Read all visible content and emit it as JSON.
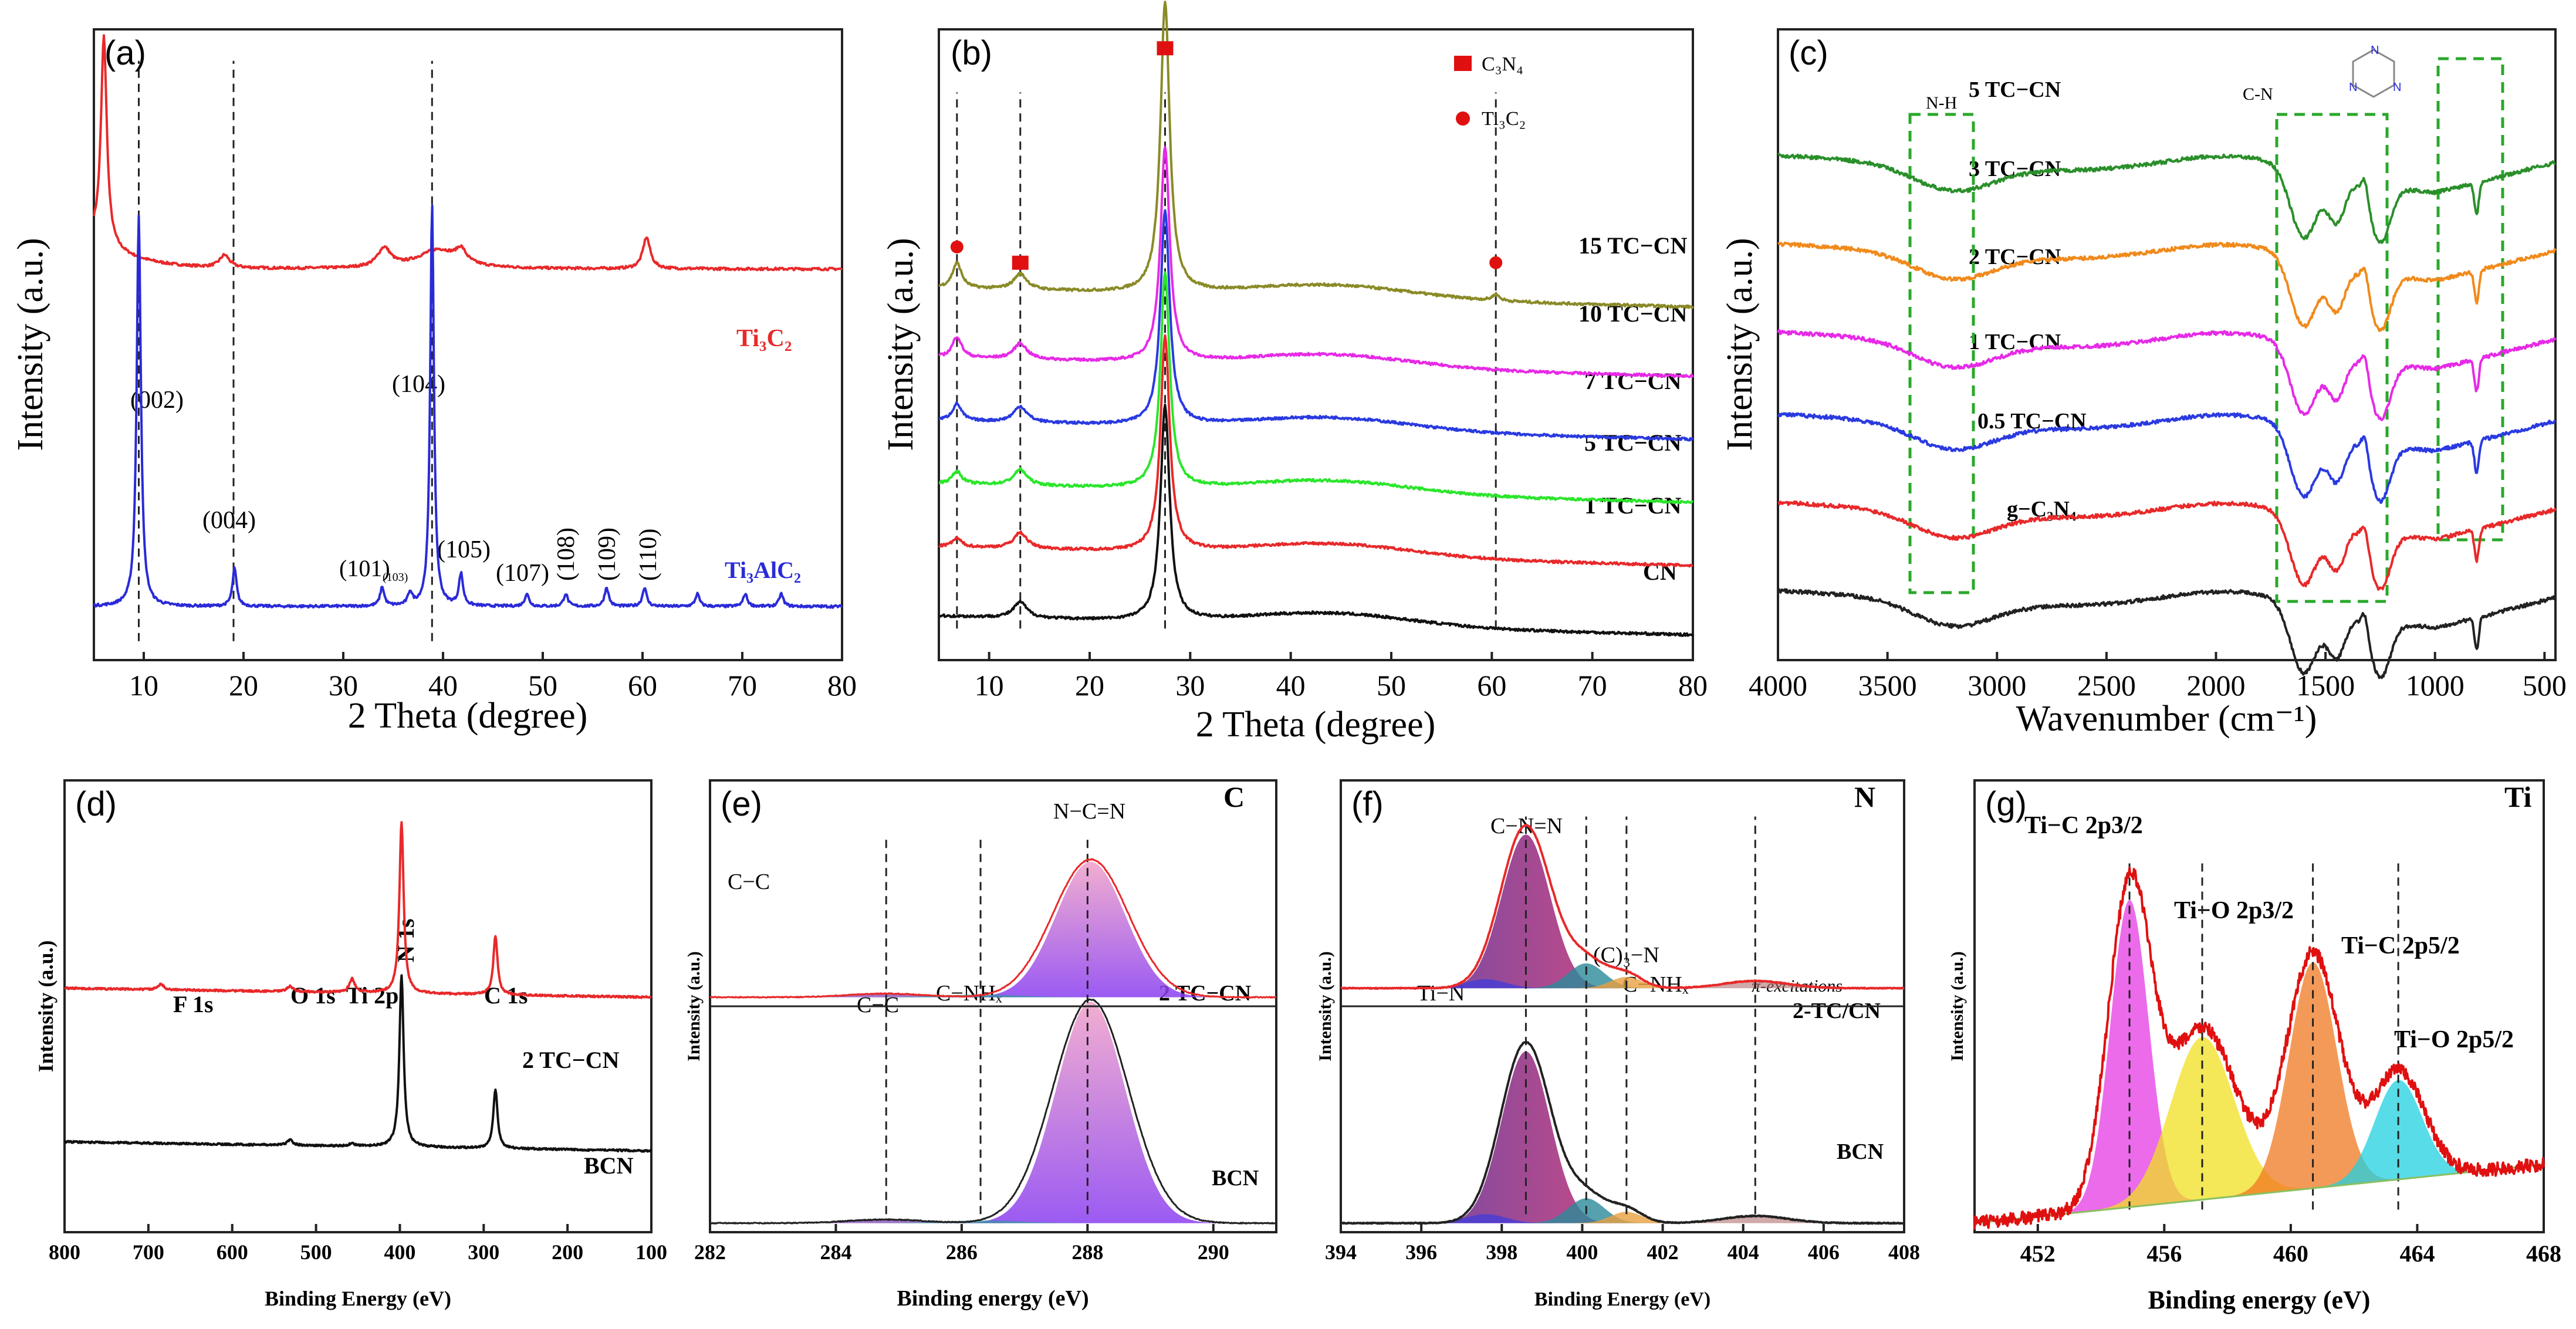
{
  "chart_data": [
    {
      "id": "a",
      "type": "line",
      "label": "(a)",
      "xlabel": "2 Theta (degree)",
      "ylabel": "Intensity (a.u.)",
      "xlim": [
        5,
        80
      ],
      "xticks": [
        10,
        20,
        30,
        40,
        50,
        60,
        70,
        80
      ],
      "reversed": false,
      "series": [
        {
          "name": "Ti3C2",
          "display": "Ti₃C₂",
          "color": "#e8292a",
          "offset": 0.57,
          "peaks": [
            [
              6.0,
              0.33,
              0.35
            ],
            [
              18.1,
              0.02,
              0.6
            ],
            [
              34.1,
              0.03,
              0.8
            ],
            [
              39.5,
              0.03,
              2.5
            ],
            [
              41.8,
              0.02,
              0.6
            ],
            [
              60.4,
              0.05,
              0.45
            ]
          ],
          "base": 0.05
        },
        {
          "name": "Ti3AlC2",
          "display": "Ti₃AlC₂",
          "color": "#2a2ad8",
          "offset": 0.08,
          "peaks": [
            [
              9.5,
              0.62,
              0.25
            ],
            [
              19.1,
              0.06,
              0.25
            ],
            [
              33.9,
              0.03,
              0.25
            ],
            [
              36.7,
              0.02,
              0.25
            ],
            [
              38.9,
              0.64,
              0.22
            ],
            [
              41.8,
              0.05,
              0.25
            ],
            [
              48.4,
              0.02,
              0.25
            ],
            [
              52.3,
              0.02,
              0.25
            ],
            [
              56.4,
              0.03,
              0.25
            ],
            [
              60.2,
              0.03,
              0.25
            ],
            [
              65.5,
              0.02,
              0.25
            ],
            [
              70.3,
              0.02,
              0.25
            ],
            [
              73.9,
              0.02,
              0.25
            ]
          ],
          "base": 0.005
        }
      ],
      "annotations": [
        "(002)",
        "(004)",
        "(101)",
        "(103)",
        "(104)",
        "(105)",
        "(107)",
        "(108)",
        "(109)",
        "(110)"
      ],
      "vlines_x": [
        9.5,
        19,
        38.9
      ]
    },
    {
      "id": "b",
      "type": "line",
      "label": "(b)",
      "xlabel": "2 Theta (degree)",
      "ylabel": "Intensity (a.u.)",
      "xlim": [
        5,
        80
      ],
      "xticks": [
        10,
        20,
        30,
        40,
        50,
        60,
        70,
        80
      ],
      "reversed": false,
      "legend": [
        {
          "marker": "square",
          "label": "C₃N₄"
        },
        {
          "marker": "circle",
          "label": "Ti₃C₂"
        }
      ],
      "series": [
        {
          "name": "15 TC-CN",
          "display": "15 TC−CN",
          "color": "#8a8a28",
          "offset": 0.58
        },
        {
          "name": "10 TC-CN",
          "display": "10 TC−CN",
          "color": "#e62ae6",
          "offset": 0.47
        },
        {
          "name": "7 TC-CN",
          "display": "7 TC−CN",
          "color": "#2a3ae0",
          "offset": 0.37
        },
        {
          "name": "5 TC-CN",
          "display": "5 TC−CN",
          "color": "#2ae62a",
          "offset": 0.27
        },
        {
          "name": "1 TC-CN",
          "display": "1 TC−CN",
          "color": "#e8292a",
          "offset": 0.17
        },
        {
          "name": "CN",
          "display": "CN",
          "color": "#111111",
          "offset": 0.06
        }
      ],
      "vlines_x": [
        6.8,
        13.1,
        27.5,
        60.4
      ]
    },
    {
      "id": "c",
      "type": "line",
      "label": "(c)",
      "xlabel": "Wavenumber (cm⁻¹)",
      "ylabel": "Intensity (a.u.)",
      "xlim": [
        4000,
        450
      ],
      "xticks": [
        4000,
        3500,
        3000,
        2500,
        2000,
        1500,
        1000,
        500
      ],
      "reversed": true,
      "series": [
        {
          "name": "5 TC-CN",
          "display": "5 TC−CN",
          "color": "#2a8f2a",
          "offset": 0.8
        },
        {
          "name": "3 TC-CN",
          "display": "3 TC−CN",
          "color": "#f08a1c",
          "offset": 0.66
        },
        {
          "name": "2 TC-CN",
          "display": "2 TC−CN",
          "color": "#e62ae6",
          "offset": 0.52
        },
        {
          "name": "1 TC-CN",
          "display": "1 TC−CN",
          "color": "#2a3ae0",
          "offset": 0.39
        },
        {
          "name": "0.5 TC-CN",
          "display": "0.5 TC−CN",
          "color": "#e8292a",
          "offset": 0.25
        },
        {
          "name": "g-C3N4",
          "display": "g−C₃N₄",
          "color": "#222222",
          "offset": 0.11
        }
      ],
      "annotations": [
        "N-H",
        "C-N"
      ]
    },
    {
      "id": "d",
      "type": "line",
      "label": "(d)",
      "xlabel": "Binding Energy (eV)",
      "ylabel": "Intensity (a.u.)",
      "xlim": [
        800,
        100
      ],
      "xticks": [
        800,
        700,
        600,
        500,
        400,
        300,
        200,
        100
      ],
      "reversed": true,
      "series": [
        {
          "name": "2 TC-CN",
          "display": "2 TC−CN",
          "color": "#e8292a",
          "offset": 0.52
        },
        {
          "name": "BCN",
          "display": "BCN",
          "color": "#111111",
          "offset": 0.18
        }
      ],
      "annotations": [
        "F 1s",
        "O 1s",
        "Ti 2p",
        "N 1s",
        "C 1s"
      ]
    },
    {
      "id": "e",
      "type": "line",
      "label": "(e)",
      "element": "C",
      "xlabel": "Binding energy (eV)",
      "ylabel": "Intensity (a.u.)",
      "xlim": [
        282,
        291
      ],
      "xticks": [
        282,
        284,
        286,
        288,
        290
      ],
      "reversed": false,
      "series": [
        {
          "name": "2 TC-CN",
          "display": "2 TC−CN"
        },
        {
          "name": "BCN",
          "display": "BCN"
        }
      ],
      "annotations": [
        "N−C=N",
        "C−C",
        "C−NHₓ",
        "C−C"
      ],
      "vlines_x": [
        284.8,
        286.3,
        288.0
      ]
    },
    {
      "id": "f",
      "type": "line",
      "label": "(f)",
      "element": "N",
      "xlabel": "Binding Energy (eV)",
      "ylabel": "Intensity (a.u.)",
      "xlim": [
        394,
        408
      ],
      "xticks": [
        394,
        396,
        398,
        400,
        402,
        404,
        406,
        408
      ],
      "reversed": false,
      "series": [
        {
          "name": "2-TC/CN",
          "display": "2-TC/CN"
        },
        {
          "name": "BCN",
          "display": "BCN"
        }
      ],
      "annotations": [
        "C−N=N",
        "Ti−N",
        "(C)₃−N",
        "C−NHₓ",
        "π-excitations"
      ],
      "vlines_x": [
        398.6,
        400.1,
        401.1,
        404.3
      ]
    },
    {
      "id": "g",
      "type": "line",
      "label": "(g)",
      "element": "Ti",
      "xlabel": "Binding energy (eV)",
      "ylabel": "Intensity (a.u.)",
      "xlim": [
        450,
        468
      ],
      "xticks": [
        452,
        456,
        460,
        464,
        468
      ],
      "reversed": false,
      "components": [
        {
          "name": "Ti−C 2p3/2",
          "center": 454.9,
          "height": 0.68
        },
        {
          "name": "Ti−O 2p3/2",
          "center": 457.2,
          "height": 0.36
        },
        {
          "name": "Ti−C 2p5/2",
          "center": 460.7,
          "height": 0.5
        },
        {
          "name": "Ti−O 2p5/2",
          "center": 463.4,
          "height": 0.22
        }
      ],
      "annotations": [
        "Ti−C 2p3/2",
        "Ti−O 2p3/2",
        "Ti−C 2p5/2",
        "Ti−O 2p5/2"
      ],
      "vlines_x": [
        454.9,
        457.2,
        460.7,
        463.4
      ]
    }
  ]
}
